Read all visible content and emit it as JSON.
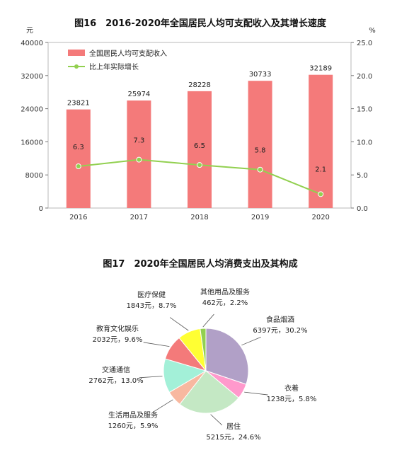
{
  "chart_data": [
    {
      "type": "bar",
      "title": "图16　2016-2020年全国居民人均可支配收入及其增长速度",
      "categories": [
        "2016",
        "2017",
        "2018",
        "2019",
        "2020"
      ],
      "series": [
        {
          "name": "全国居民人均可支配收入",
          "type": "bar",
          "axis": "left",
          "values": [
            23821,
            25974,
            28228,
            30733,
            32189
          ],
          "color": "#f47a7a"
        },
        {
          "name": "比上年实际增长",
          "type": "line",
          "axis": "right",
          "values": [
            6.3,
            7.3,
            6.5,
            5.8,
            2.1
          ],
          "color": "#92d050"
        }
      ],
      "bar_labels": [
        "23821",
        "25974",
        "28228",
        "30733",
        "32189"
      ],
      "line_labels": [
        "6.3",
        "7.3",
        "6.5",
        "5.8",
        "2.1"
      ],
      "y_left": {
        "unit": "元",
        "ylim": [
          0,
          40000
        ],
        "ticks": [
          "0",
          "8000",
          "16000",
          "24000",
          "32000",
          "40000"
        ]
      },
      "y_right": {
        "unit": "%",
        "ylim": [
          0,
          25
        ],
        "ticks": [
          "0.0",
          "5.0",
          "10.0",
          "15.0",
          "20.0",
          "25.0"
        ]
      },
      "legend": "top-left"
    },
    {
      "type": "pie",
      "title": "图17　2020年全国居民人均消费支出及其构成",
      "slices": [
        {
          "name": "食品烟酒",
          "value": 6397,
          "percent": 30.2,
          "color": "#b1a0c7",
          "line1": "食品烟酒",
          "line2": "6397元，30.2%"
        },
        {
          "name": "衣着",
          "value": 1238,
          "percent": 5.8,
          "color": "#ff99cc",
          "line1": "衣着",
          "line2": "1238元，5.8%"
        },
        {
          "name": "居住",
          "value": 5215,
          "percent": 24.6,
          "color": "#c4e8c4",
          "line1": "居住",
          "line2": "5215元，24.6%"
        },
        {
          "name": "生活用品及服务",
          "value": 1260,
          "percent": 5.9,
          "color": "#f8b8a0",
          "line1": "生活用品及服务",
          "line2": "1260元，5.9%"
        },
        {
          "name": "交通通信",
          "value": 2762,
          "percent": 13.0,
          "color": "#a3f0d8",
          "line1": "交通通信",
          "line2": "2762元，13.0%"
        },
        {
          "name": "教育文化娱乐",
          "value": 2032,
          "percent": 9.6,
          "color": "#f47a7a",
          "line1": "教育文化娱乐",
          "line2": "2032元，9.6%"
        },
        {
          "name": "医疗保健",
          "value": 1843,
          "percent": 8.7,
          "color": "#ffff33",
          "line1": "医疗保健",
          "line2": "1843元，8.7%"
        },
        {
          "name": "其他用品及服务",
          "value": 462,
          "percent": 2.2,
          "color": "#92d050",
          "line1": "其他用品及服务",
          "line2": "462元，2.2%"
        }
      ]
    }
  ]
}
